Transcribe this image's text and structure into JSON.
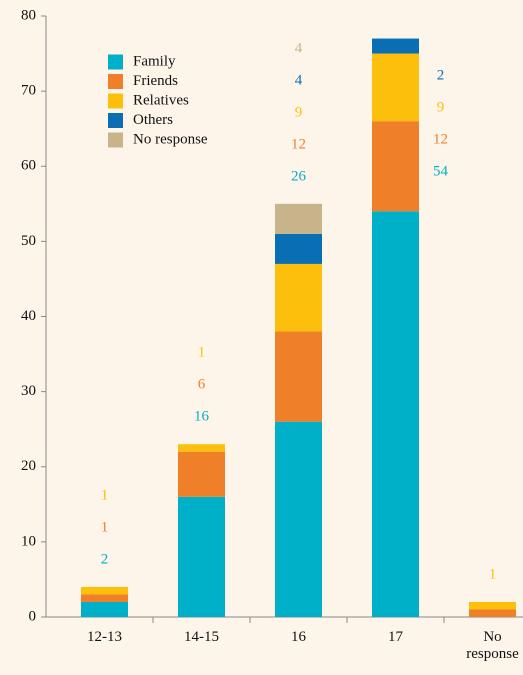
{
  "chart_data": {
    "type": "stacked_bar",
    "categories": [
      "12-13",
      "14-15",
      "16",
      "17",
      "No response"
    ],
    "series": [
      {
        "name": "Family",
        "color": "#00b0c8",
        "values": [
          2,
          16,
          26,
          54,
          null
        ],
        "value_labels": [
          "2",
          "16",
          "26",
          "54",
          null
        ]
      },
      {
        "name": "Friends",
        "color": "#f07f2a",
        "values": [
          1,
          6,
          12,
          12,
          1
        ],
        "value_labels": [
          "1",
          "6",
          "12",
          "12",
          null
        ]
      },
      {
        "name": "Relatives",
        "color": "#fcc00c",
        "values": [
          1,
          1,
          9,
          9,
          1
        ],
        "value_labels": [
          "1",
          "1",
          "9",
          "9",
          "1"
        ]
      },
      {
        "name": "Others",
        "color": "#0a6eb4",
        "values": [
          null,
          null,
          4,
          2,
          null
        ],
        "value_labels": [
          null,
          null,
          "4",
          "2",
          null
        ]
      },
      {
        "name": "No response",
        "color": "#c8b48a",
        "values": [
          null,
          null,
          4,
          null,
          null
        ],
        "value_labels": [
          null,
          null,
          "4",
          null,
          null
        ]
      }
    ],
    "ylim": [
      0,
      80
    ],
    "yticks": [
      0,
      10,
      20,
      30,
      40,
      50,
      60,
      70,
      80
    ],
    "legend": "upper left"
  }
}
